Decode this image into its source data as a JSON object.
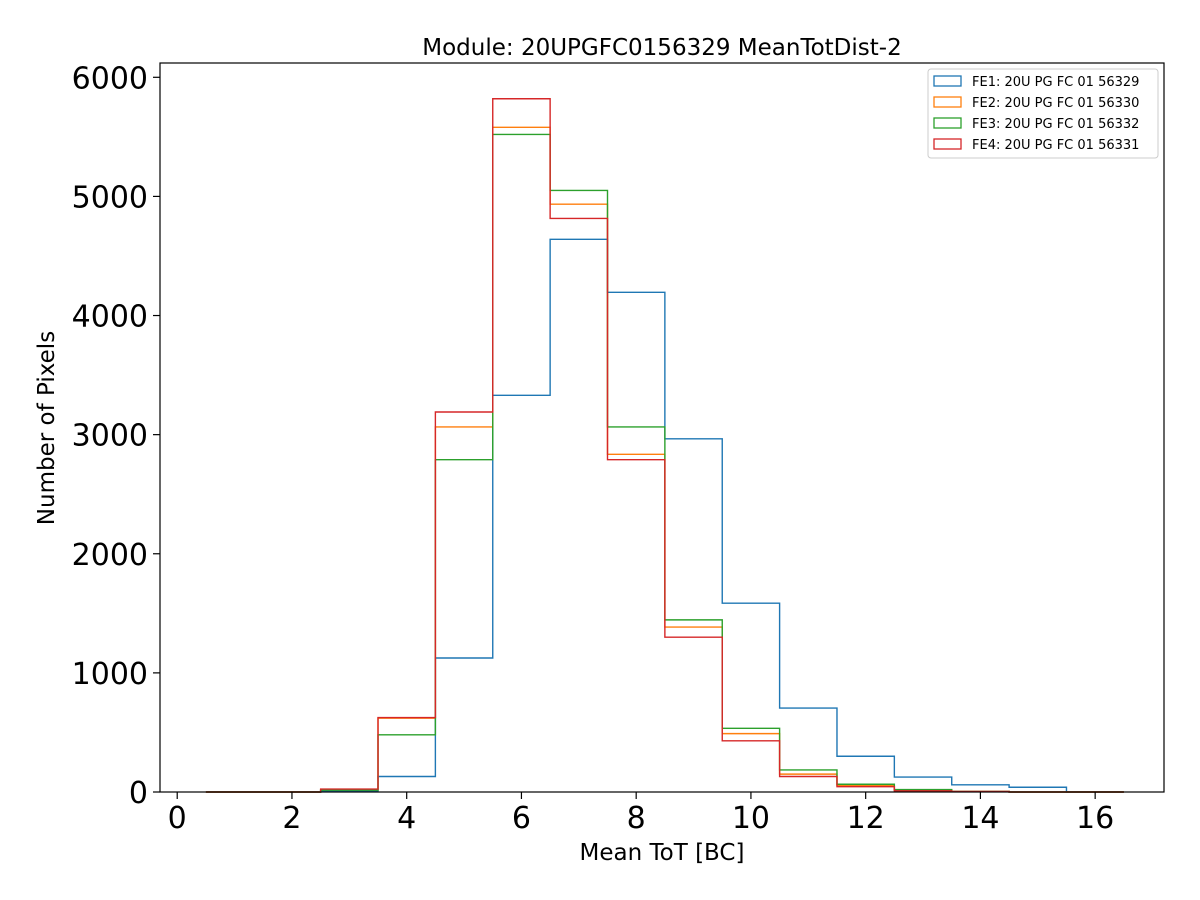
{
  "chart_data": {
    "type": "histogram",
    "title": "Module: 20UPGFC0156329 MeanTotDist-2",
    "xlabel": "Mean ToT [BC]",
    "ylabel": "Number of Pixels",
    "xlim": [
      -0.3,
      17.2
    ],
    "ylim": [
      0,
      6120
    ],
    "xticks": [
      0,
      2,
      4,
      6,
      8,
      10,
      12,
      14,
      16
    ],
    "yticks": [
      0,
      1000,
      2000,
      3000,
      4000,
      5000,
      6000
    ],
    "bin_edges": [
      0.5,
      1.5,
      2.5,
      3.5,
      4.5,
      5.5,
      6.5,
      7.5,
      8.5,
      9.5,
      10.5,
      11.5,
      12.5,
      13.5,
      14.5,
      15.5,
      16.5
    ],
    "legend_position": "top-right",
    "series": [
      {
        "name": "FE1: 20U PG FC 01 56329",
        "color": "#1f77b4",
        "values": [
          0,
          0,
          10,
          130,
          1125,
          3330,
          4640,
          4195,
          2965,
          1585,
          705,
          300,
          125,
          60,
          40,
          0
        ]
      },
      {
        "name": "FE2: 20U PG FC 01 56330",
        "color": "#ff7f0e",
        "values": [
          0,
          0,
          20,
          620,
          3065,
          5580,
          4935,
          2835,
          1385,
          490,
          150,
          55,
          15,
          5,
          0,
          0
        ]
      },
      {
        "name": "FE3: 20U PG FC 01 56332",
        "color": "#2ca02c",
        "values": [
          0,
          0,
          15,
          480,
          2790,
          5520,
          5050,
          3065,
          1445,
          535,
          185,
          65,
          20,
          5,
          0,
          0
        ]
      },
      {
        "name": "FE4: 20U PG FC 01 56331",
        "color": "#d62728",
        "values": [
          0,
          0,
          25,
          625,
          3190,
          5820,
          4815,
          2790,
          1300,
          430,
          130,
          45,
          10,
          5,
          0,
          0
        ]
      }
    ]
  }
}
